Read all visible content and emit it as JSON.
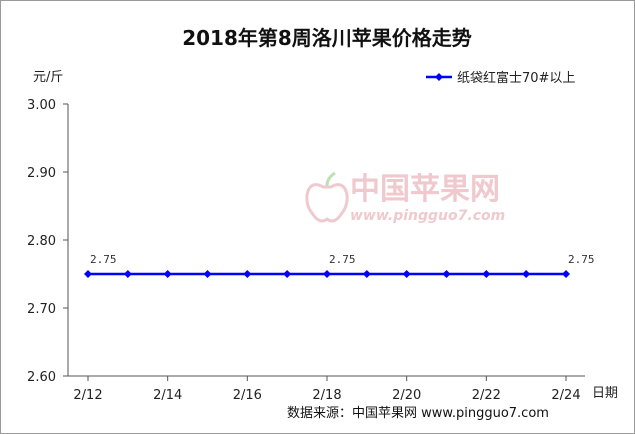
{
  "chart_data": {
    "type": "line",
    "title": "2018年第8周洛川苹果价格走势",
    "ylabel": "元/斤",
    "xlabel": "日期",
    "ylim": [
      2.6,
      3.0
    ],
    "yticks": [
      "2.60",
      "2.70",
      "2.80",
      "2.90",
      "3.00"
    ],
    "xticks": [
      "2/12",
      "2/14",
      "2/16",
      "2/18",
      "2/20",
      "2/22",
      "2/24"
    ],
    "x": [
      "2/12",
      "2/13",
      "2/14",
      "2/15",
      "2/16",
      "2/17",
      "2/18",
      "2/19",
      "2/20",
      "2/21",
      "2/22",
      "2/23",
      "2/24"
    ],
    "series": [
      {
        "name": "纸袋红富士70#以上",
        "values": [
          2.75,
          2.75,
          2.75,
          2.75,
          2.75,
          2.75,
          2.75,
          2.75,
          2.75,
          2.75,
          2.75,
          2.75,
          2.75
        ],
        "color": "#0000ff"
      }
    ],
    "data_labels": [
      {
        "x": "2/12",
        "text": "2.75"
      },
      {
        "x": "2/18",
        "text": "2.75"
      },
      {
        "x": "2/24",
        "text": "2.75"
      }
    ],
    "legend_position": "top-right",
    "grid": false
  },
  "watermark": {
    "cn": "中国苹果网",
    "url": "www.pingguo7.com"
  },
  "source": "数据来源：中国苹果网 www.pingguo7.com"
}
